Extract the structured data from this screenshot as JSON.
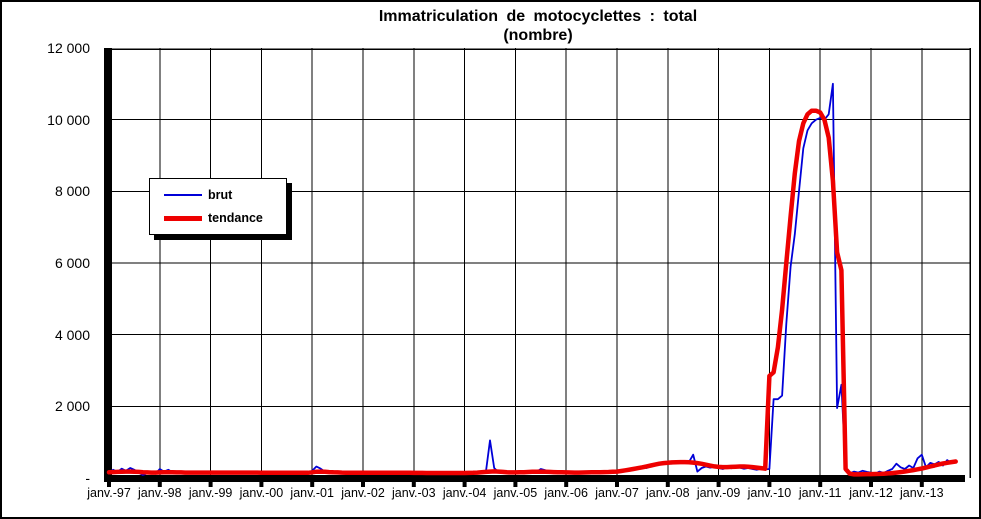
{
  "title": {
    "line1": "Immatriculation de motocyclettes : total",
    "line2": "(nombre)"
  },
  "legend": {
    "items": [
      {
        "label": "brut",
        "color": "#0000D8",
        "thickness": 2
      },
      {
        "label": "tendance",
        "color": "#EE0000",
        "thickness": 5
      }
    ]
  },
  "y_axis": {
    "labels": [
      "12 000",
      "10 000",
      "8 000",
      "6 000",
      "4 000",
      "2 000",
      "-"
    ],
    "min": 0,
    "max": 12000,
    "step": 2000
  },
  "x_axis": {
    "labels": [
      "janv.-97",
      "janv.-98",
      "janv.-99",
      "janv.-00",
      "janv.-01",
      "janv.-02",
      "janv.-03",
      "janv.-04",
      "janv.-05",
      "janv.-06",
      "janv.-07",
      "janv.-08",
      "janv.-09",
      "janv.-10",
      "janv.-11",
      "janv.-12",
      "janv.-13"
    ]
  },
  "chart_data": {
    "type": "line",
    "title": "Immatriculation de motocyclettes : total (nombre)",
    "x_start": "janv.-97",
    "x_end": "sept.-13",
    "frequency": "monthly",
    "ylim": [
      0,
      12000
    ],
    "grid": "on",
    "legend_position": "upper-left-inside",
    "x_tick_labels": [
      "janv.-97",
      "janv.-98",
      "janv.-99",
      "janv.-00",
      "janv.-01",
      "janv.-02",
      "janv.-03",
      "janv.-04",
      "janv.-05",
      "janv.-06",
      "janv.-07",
      "janv.-08",
      "janv.-09",
      "janv.-10",
      "janv.-11",
      "janv.-12",
      "janv.-13"
    ],
    "series": [
      {
        "name": "brut",
        "color": "#0000D8",
        "values": [
          150,
          230,
          170,
          260,
          200,
          280,
          230,
          150,
          80,
          130,
          170,
          120,
          250,
          180,
          230,
          160,
          140,
          170,
          150,
          130,
          160,
          140,
          150,
          130,
          140,
          160,
          130,
          150,
          170,
          140,
          130,
          150,
          140,
          130,
          150,
          140,
          150,
          130,
          160,
          140,
          150,
          130,
          140,
          160,
          130,
          140,
          150,
          140,
          200,
          320,
          260,
          180,
          150,
          170,
          140,
          160,
          150,
          140,
          130,
          150,
          140,
          160,
          150,
          130,
          150,
          140,
          160,
          130,
          140,
          150,
          130,
          140,
          150,
          140,
          130,
          150,
          140,
          160,
          140,
          130,
          150,
          140,
          130,
          150,
          140,
          150,
          130,
          140,
          160,
          150,
          1050,
          280,
          160,
          140,
          150,
          140,
          150,
          140,
          160,
          150,
          140,
          170,
          250,
          220,
          160,
          150,
          140,
          150,
          140,
          150,
          140,
          160,
          150,
          140,
          150,
          160,
          140,
          150,
          160,
          170,
          180,
          200,
          240,
          210,
          260,
          290,
          320,
          280,
          330,
          360,
          390,
          410,
          430,
          400,
          450,
          420,
          460,
          450,
          650,
          180,
          280,
          320,
          290,
          310,
          280,
          250,
          300,
          270,
          320,
          290,
          260,
          280,
          250,
          230,
          260,
          240,
          250,
          2200,
          2200,
          2300,
          4300,
          5900,
          6800,
          8000,
          9200,
          9700,
          9900,
          10000,
          10050,
          10000,
          10150,
          11000,
          1950,
          2600,
          250,
          130,
          180,
          150,
          200,
          170,
          150,
          120,
          180,
          140,
          200,
          250,
          400,
          300,
          250,
          350,
          280,
          550,
          650,
          300,
          420,
          380,
          450,
          350,
          500,
          420,
          470
        ]
      },
      {
        "name": "tendance",
        "color": "#EE0000",
        "values": [
          160,
          165,
          170,
          175,
          180,
          180,
          175,
          170,
          160,
          155,
          150,
          150,
          155,
          160,
          160,
          160,
          155,
          155,
          150,
          150,
          150,
          150,
          150,
          150,
          150,
          150,
          150,
          150,
          150,
          150,
          150,
          150,
          150,
          150,
          150,
          150,
          148,
          146,
          145,
          145,
          145,
          144,
          144,
          145,
          145,
          145,
          145,
          145,
          160,
          175,
          180,
          175,
          165,
          160,
          155,
          150,
          148,
          146,
          145,
          145,
          145,
          145,
          145,
          145,
          145,
          145,
          145,
          145,
          145,
          145,
          145,
          145,
          143,
          142,
          141,
          140,
          140,
          140,
          140,
          140,
          140,
          140,
          140,
          140,
          140,
          142,
          145,
          150,
          160,
          170,
          180,
          185,
          180,
          170,
          160,
          155,
          155,
          158,
          162,
          168,
          172,
          175,
          178,
          175,
          170,
          165,
          160,
          158,
          155,
          153,
          152,
          152,
          153,
          155,
          158,
          160,
          162,
          165,
          168,
          172,
          180,
          195,
          215,
          235,
          255,
          275,
          300,
          325,
          350,
          375,
          400,
          415,
          425,
          435,
          440,
          445,
          445,
          440,
          430,
          415,
          395,
          370,
          345,
          325,
          310,
          305,
          305,
          310,
          315,
          320,
          320,
          315,
          305,
          290,
          275,
          260,
          2850,
          2950,
          3650,
          4700,
          6000,
          7300,
          8500,
          9400,
          9900,
          10150,
          10250,
          10250,
          10200,
          10000,
          9500,
          8300,
          6300,
          5800,
          250,
          120,
          100,
          100,
          105,
          110,
          110,
          112,
          115,
          120,
          128,
          138,
          150,
          165,
          182,
          200,
          220,
          242,
          265,
          290,
          320,
          350,
          380,
          405,
          425,
          445,
          460
        ]
      }
    ]
  }
}
